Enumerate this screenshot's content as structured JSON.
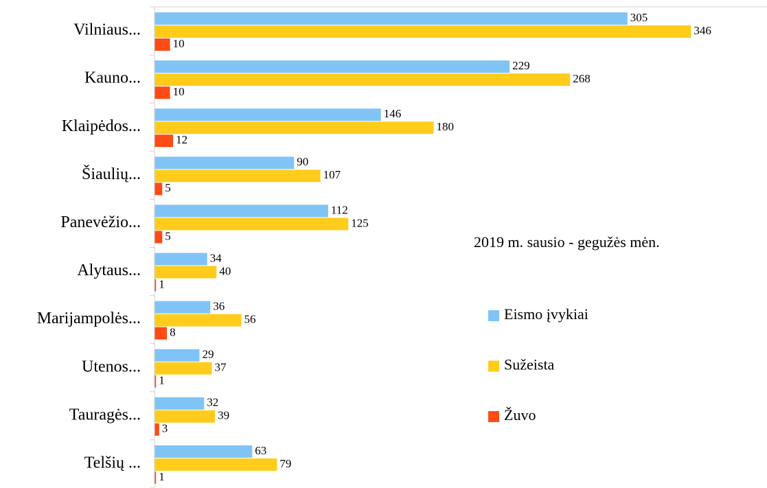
{
  "chart_data": {
    "type": "hbar",
    "title": "2019 m. sausio - gegužės mėn.",
    "categories": [
      "Vilniaus...",
      "Kauno...",
      "Klaipėdos...",
      "Šiaulių...",
      "Panevėžio...",
      "Alytaus...",
      "Marijampolės...",
      "Utenos...",
      "Tauragės...",
      "Telšių ..."
    ],
    "series": [
      {
        "name": "Eismo įvykiai",
        "color": "#80c4f5",
        "values": [
          305,
          229,
          146,
          90,
          112,
          34,
          36,
          29,
          32,
          63
        ]
      },
      {
        "name": "Sužeista",
        "color": "#ffcc1c",
        "values": [
          346,
          268,
          180,
          107,
          125,
          40,
          56,
          37,
          39,
          79
        ]
      },
      {
        "name": "Žuvo",
        "color": "#ff4b14",
        "values": [
          10,
          10,
          12,
          5,
          5,
          1,
          8,
          1,
          3,
          1
        ]
      }
    ],
    "xlim": [
      0,
      395
    ]
  }
}
